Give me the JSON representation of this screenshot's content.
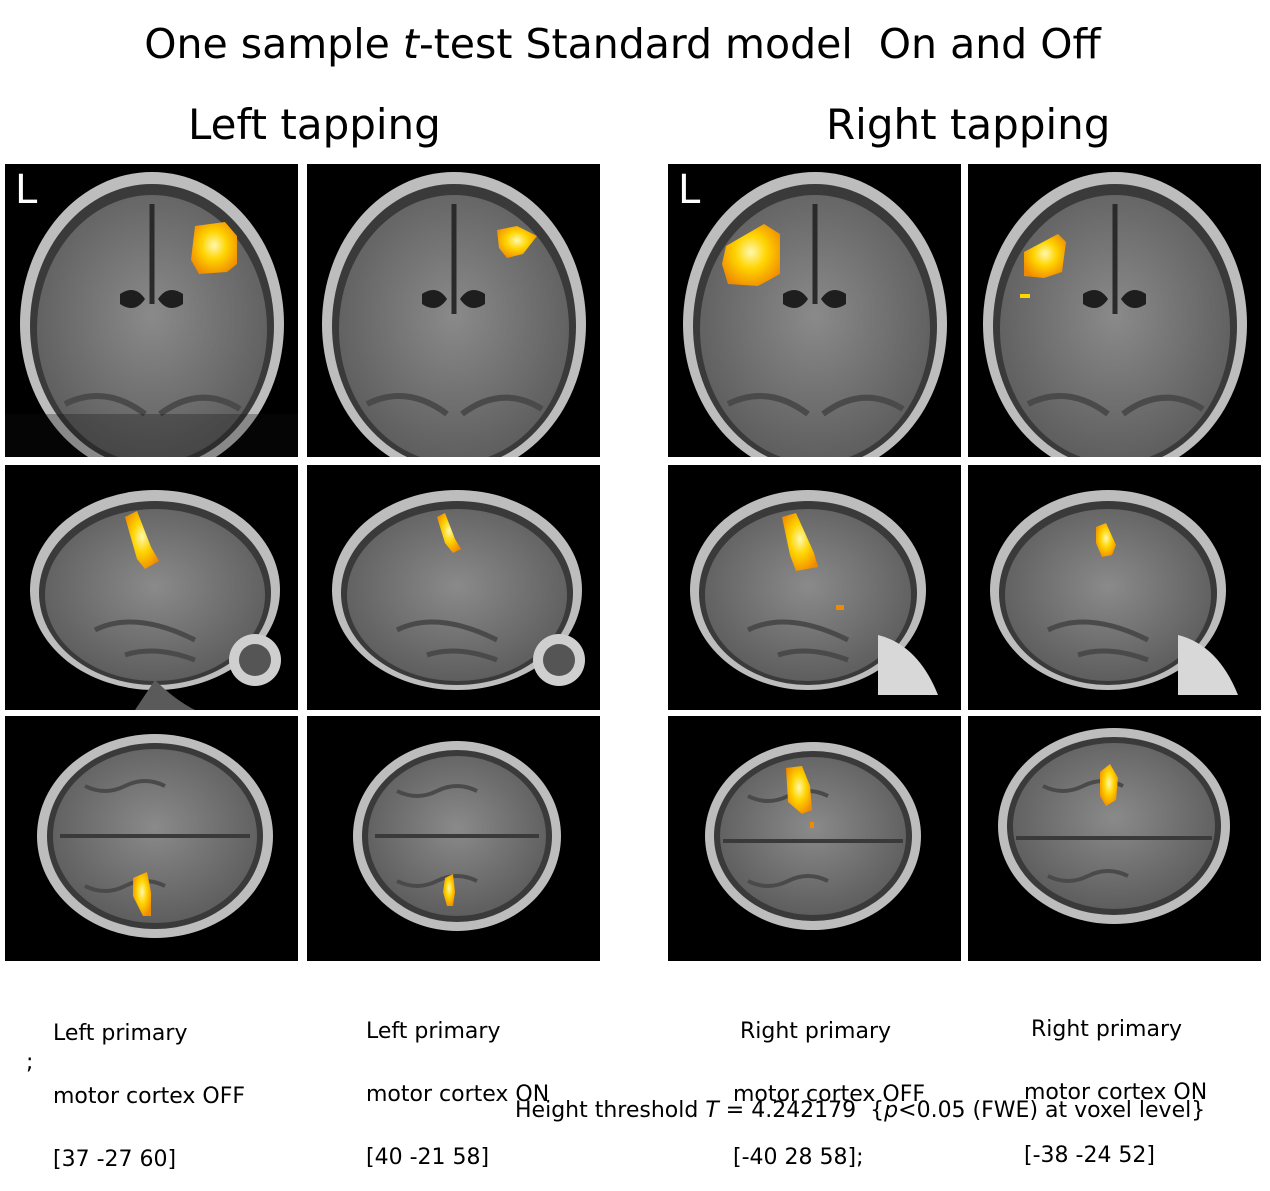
{
  "figure": {
    "title_pre": "One sample ",
    "title_t": "t",
    "title_post": "-test Standard model  On and Off",
    "left_heading": "Left tapping",
    "right_heading": "Right tapping",
    "orientation_marker": "L",
    "captions": [
      {
        "line1": "Left primary",
        "line2": "motor cortex OFF",
        "line3": "[37 -27 60]"
      },
      {
        "line1": "Left primary",
        "line2": "motor cortex ON",
        "line3": "[40 -21 58]"
      },
      {
        "line1": " Right primary",
        "line2": "motor cortex OFF",
        "line3": "[-40 28 58];"
      },
      {
        "line1": " Right primary",
        "line2": "motor cortex ON",
        "line3": "[-38 -24 52]"
      }
    ],
    "stray_mark": ";",
    "threshold_pre": "Height threshold ",
    "threshold_T": "T",
    "threshold_mid": " = 4.242179  {",
    "threshold_p": "p",
    "threshold_post": "<0.05 (FWE) at voxel level}"
  },
  "colors": {
    "background": "#000000",
    "brain_gray": "#6e6e6e",
    "activation_core": "#fff6a0",
    "activation_mid": "#ffd400",
    "activation_edge": "#f08a00"
  },
  "views": [
    "coronal",
    "sagittal",
    "axial"
  ]
}
